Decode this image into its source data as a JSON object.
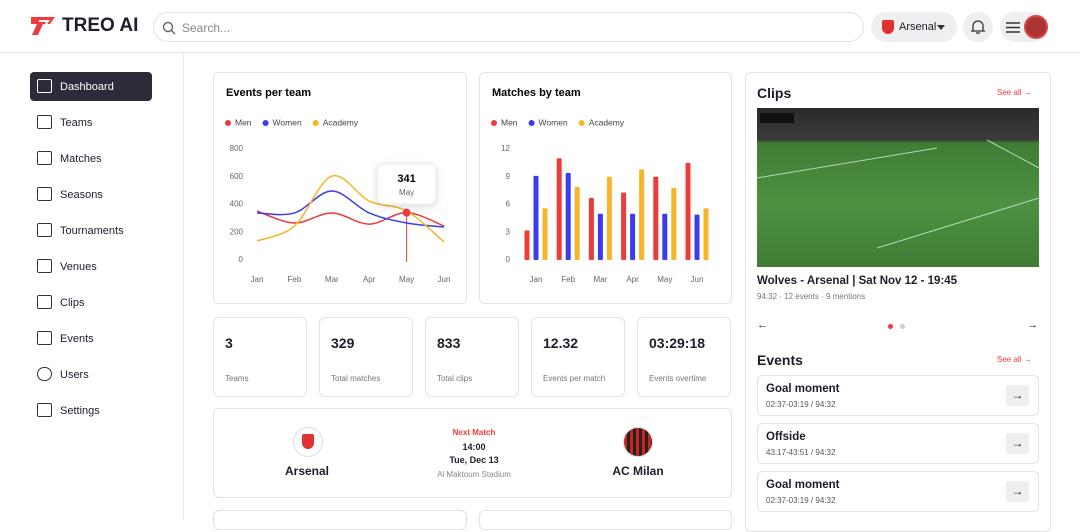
{
  "header": {
    "logo": "TREO AI",
    "search_placeholder": "Search...",
    "team": "Arsenal"
  },
  "sidebar": {
    "items": [
      "Dashboard",
      "Teams",
      "Matches",
      "Seasons",
      "Tournaments",
      "Venues",
      "Clips",
      "Events",
      "Users",
      "Settings"
    ]
  },
  "chart_data": [
    {
      "type": "line",
      "title": "Events per team",
      "categories": [
        "Jan",
        "Feb",
        "Mar",
        "Apr",
        "May",
        "Jun"
      ],
      "series": [
        {
          "name": "Men",
          "color": "#ef3b3b",
          "values": [
            353,
            267,
            339,
            259,
            341,
            245
          ]
        },
        {
          "name": "Women",
          "color": "#3b3bef",
          "values": [
            339,
            339,
            497,
            339,
            267,
            238
          ]
        },
        {
          "name": "Academy",
          "color": "#f7b529",
          "values": [
            137,
            245,
            605,
            425,
            353,
            130
          ]
        }
      ],
      "ylim": [
        0,
        800
      ],
      "yticks": [
        0,
        200,
        400,
        600,
        800
      ],
      "tooltip": {
        "value": 341,
        "label": "May"
      }
    },
    {
      "type": "bar",
      "title": "Matches by team",
      "categories": [
        "Jan",
        "Feb",
        "Mar",
        "Apr",
        "May",
        "Jun"
      ],
      "series": [
        {
          "name": "Men",
          "color": "#ef3b3b",
          "values": [
            3.2,
            11,
            6.7,
            7.3,
            9,
            10.5
          ]
        },
        {
          "name": "Women",
          "color": "#3b3bef",
          "values": [
            9.1,
            9.4,
            5,
            5,
            5,
            4.9
          ]
        },
        {
          "name": "Academy",
          "color": "#f7b529",
          "values": [
            5.6,
            7.9,
            9,
            9.8,
            7.8,
            5.6
          ]
        }
      ],
      "ylim": [
        0,
        12
      ],
      "yticks": [
        0,
        3,
        6,
        9,
        12
      ]
    }
  ],
  "stats": [
    {
      "value": 3,
      "label": "Teams"
    },
    {
      "value": 329,
      "label": "Total matches"
    },
    {
      "value": 833,
      "label": "Total clips"
    },
    {
      "value": 12.32,
      "label": "Events per match"
    },
    {
      "value": "03:29:18",
      "label": "Events overtime"
    }
  ],
  "next_match": {
    "label": "Next Match",
    "time": "14:00",
    "date": "Tue, Dec 13",
    "venue": "Al Maktoum Stadium",
    "home": "Arsenal",
    "away": "AC Milan"
  },
  "clips": {
    "title": "Clips",
    "see_all": "See all",
    "clip_title": "Wolves - Arsenal | Sat Nov 12 - 19:45",
    "duration": "94:32",
    "events": "12 events",
    "mentions": "9 mentions"
  },
  "events": {
    "title": "Events",
    "see_all": "See all",
    "items": [
      {
        "name": "Goal moment",
        "time": "02:37-03:19 / 94:32"
      },
      {
        "name": "Offside",
        "time": "43:17-43:51 / 94:32"
      },
      {
        "name": "Goal moment",
        "time": "02:37-03:19 / 94:32"
      }
    ]
  }
}
